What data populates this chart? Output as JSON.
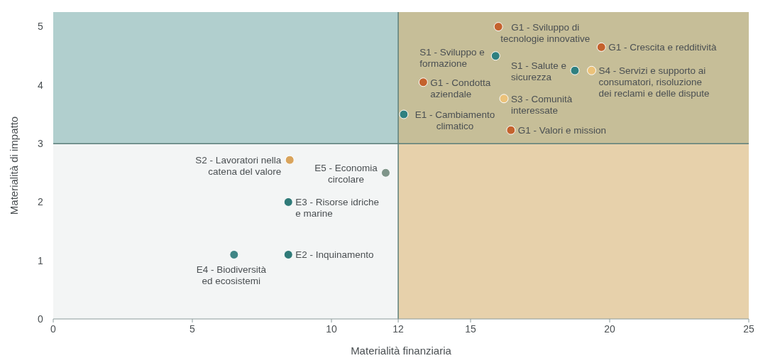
{
  "chart_data": {
    "type": "scatter",
    "xlabel": "Materialità finanziaria",
    "ylabel": "Materialità di impatto",
    "xlim": [
      0,
      25
    ],
    "ylim": [
      0,
      5.25
    ],
    "xticks": [
      0,
      5,
      10,
      {
        "value": 12.4,
        "label": "12"
      },
      15,
      20,
      25
    ],
    "yticks": [
      0,
      1,
      2,
      3,
      4,
      5
    ],
    "grid": false,
    "marker": "circle",
    "series": [
      {
        "x": [
          16.0,
          19.7,
          15.9,
          18.75,
          19.35,
          13.3,
          16.2,
          12.6,
          16.45,
          8.5,
          11.95,
          8.45,
          6.5,
          8.45
        ],
        "values": [
          5.0,
          4.65,
          4.5,
          4.25,
          4.25,
          4.05,
          3.77,
          3.5,
          3.23,
          2.72,
          2.5,
          2.0,
          1.1,
          1.1
        ],
        "colors": [
          "#c4622d",
          "#c4622d",
          "#2f8080",
          "#2f8080",
          "#ebc27a",
          "#c4622d",
          "#ebc27a",
          "#2f8080",
          "#c4622d",
          "#d9a45c",
          "#7f958a",
          "#2f7a78",
          "#3f8585",
          "#2f7a78"
        ]
      }
    ],
    "ref_lines": [
      {
        "axis": "x",
        "value": 12.4,
        "color": "#5d7f7a"
      },
      {
        "axis": "y",
        "value": 3,
        "color": "#5d7f7a"
      }
    ],
    "bands": [
      {
        "axis": "y",
        "from": 3,
        "to": 5.25,
        "color": "#6fa9a7"
      },
      {
        "axis": "x",
        "from": 12.4,
        "to": 25,
        "color": "#dcae62"
      }
    ],
    "annotations": [
      {
        "text": "G1 - Sviluppo di\ntecnologie innovative",
        "x": 16.0,
        "y": 5.0
      },
      {
        "text": "G1 - Crescita e redditività",
        "x": 19.7,
        "y": 4.65
      },
      {
        "text": "S1 - Sviluppo e\nformazione",
        "x": 15.9,
        "y": 4.5
      },
      {
        "text": "S1 - Salute e\nsicurezza",
        "x": 18.75,
        "y": 4.25
      },
      {
        "text": "S4 - Servizi e supporto ai\nconsumatori, risoluzione\ndei reclami e delle dispute",
        "x": 19.35,
        "y": 4.25
      },
      {
        "text": "G1 - Condotta\naziendale",
        "x": 13.3,
        "y": 4.05
      },
      {
        "text": "S3 - Comunità\ninteressate",
        "x": 16.2,
        "y": 3.77
      },
      {
        "text": "E1 - Cambiamento\nclimatico",
        "x": 12.6,
        "y": 3.5
      },
      {
        "text": "G1 - Valori e mission",
        "x": 16.45,
        "y": 3.23
      },
      {
        "text": "S2 - Lavoratori nella\ncatena del valore",
        "x": 8.5,
        "y": 2.72
      },
      {
        "text": "E5 - Economia\ncircolare",
        "x": 11.95,
        "y": 2.5
      },
      {
        "text": "E3 - Risorse idriche\ne marine",
        "x": 8.45,
        "y": 2.0
      },
      {
        "text": "E4 - Biodiversità\ned ecosistemi",
        "x": 6.5,
        "y": 1.1
      },
      {
        "text": "E2 - Inquinamento",
        "x": 8.45,
        "y": 1.1
      }
    ]
  }
}
